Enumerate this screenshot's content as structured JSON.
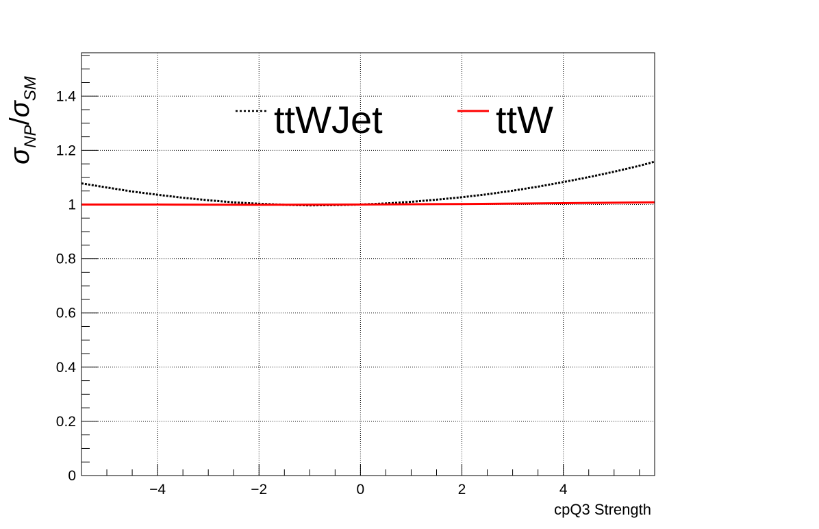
{
  "chart_data": {
    "type": "line",
    "title": "",
    "xlabel": "cpQ3 Strength",
    "ylabel_main": "σ",
    "ylabel_sub1": "NP",
    "ylabel_slash": "/",
    "ylabel_main2": "σ",
    "ylabel_sub2": "SM",
    "xlim": [
      -5.5,
      5.8
    ],
    "ylim": [
      0,
      1.56
    ],
    "grid": true,
    "legend_position": "top-center",
    "xticks": [
      -4,
      -2,
      0,
      2,
      4
    ],
    "xtick_labels": [
      "−4",
      "−2",
      "0",
      "2",
      "4"
    ],
    "yticks": [
      0,
      0.2,
      0.4,
      0.6,
      0.8,
      1,
      1.2,
      1.4
    ],
    "ytick_labels": [
      "0",
      "0.2",
      "0.4",
      "0.6",
      "0.8",
      "1",
      "1.2",
      "1.4"
    ],
    "series": [
      {
        "name": "ttWJet",
        "color": "#000000",
        "style": "dotted",
        "x": [
          -5.5,
          -5.0,
          -4.5,
          -4.0,
          -3.5,
          -3.0,
          -2.5,
          -2.0,
          -1.5,
          -1.0,
          -0.5,
          0.0,
          0.5,
          1.0,
          1.5,
          2.0,
          2.5,
          3.0,
          3.5,
          4.0,
          4.5,
          5.0,
          5.5,
          5.8
        ],
        "y": [
          1.078,
          1.063,
          1.048,
          1.036,
          1.025,
          1.016,
          1.008,
          1.003,
          0.999,
          0.997,
          0.998,
          1.0,
          1.004,
          1.01,
          1.018,
          1.027,
          1.038,
          1.051,
          1.066,
          1.083,
          1.101,
          1.121,
          1.143,
          1.158
        ]
      },
      {
        "name": "ttW",
        "color": "#ff0000",
        "style": "solid",
        "x": [
          -5.5,
          -4.0,
          -2.0,
          0.0,
          2.0,
          4.0,
          5.8
        ],
        "y": [
          1.0,
          1.0,
          0.999,
          1.0,
          1.002,
          1.005,
          1.008
        ]
      }
    ]
  }
}
